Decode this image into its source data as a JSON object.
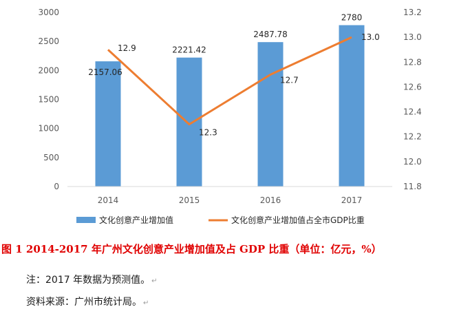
{
  "chart_data": {
    "type": "bar",
    "categories": [
      "2014",
      "2015",
      "2016",
      "2017"
    ],
    "series": [
      {
        "name": "文化创意产业增加值",
        "type": "bar",
        "axis": "left",
        "values": [
          2157.06,
          2221.42,
          2487.78,
          2780
        ],
        "labels": [
          "2157.06",
          "2221.42",
          "2487.78",
          "2780"
        ],
        "color": "#5b9bd5"
      },
      {
        "name": "文化创意产业增加值占全市GDP比重",
        "type": "line",
        "axis": "right",
        "values": [
          12.9,
          12.3,
          12.7,
          13.0
        ],
        "labels": [
          "12.9",
          "12.3",
          "12.7",
          "13.0"
        ],
        "color": "#ed7d31"
      }
    ],
    "y_left": {
      "min": 0,
      "max": 3000,
      "ticks": [
        "0",
        "500",
        "1000",
        "1500",
        "2000",
        "2500",
        "3000"
      ]
    },
    "y_right": {
      "min": 11.8,
      "max": 13.2,
      "ticks": [
        "11.8",
        "12.0",
        "12.2",
        "12.4",
        "12.6",
        "12.8",
        "13.0",
        "13.2"
      ]
    },
    "grid": false,
    "legend_position": "bottom"
  },
  "caption": "图 1   2014-2017 年广州文化创意产业增加值及占 GDP 比重（单位：亿元，%）",
  "note": "注：2017 年数据为预测值。",
  "source": "资料来源：广州市统计局。"
}
